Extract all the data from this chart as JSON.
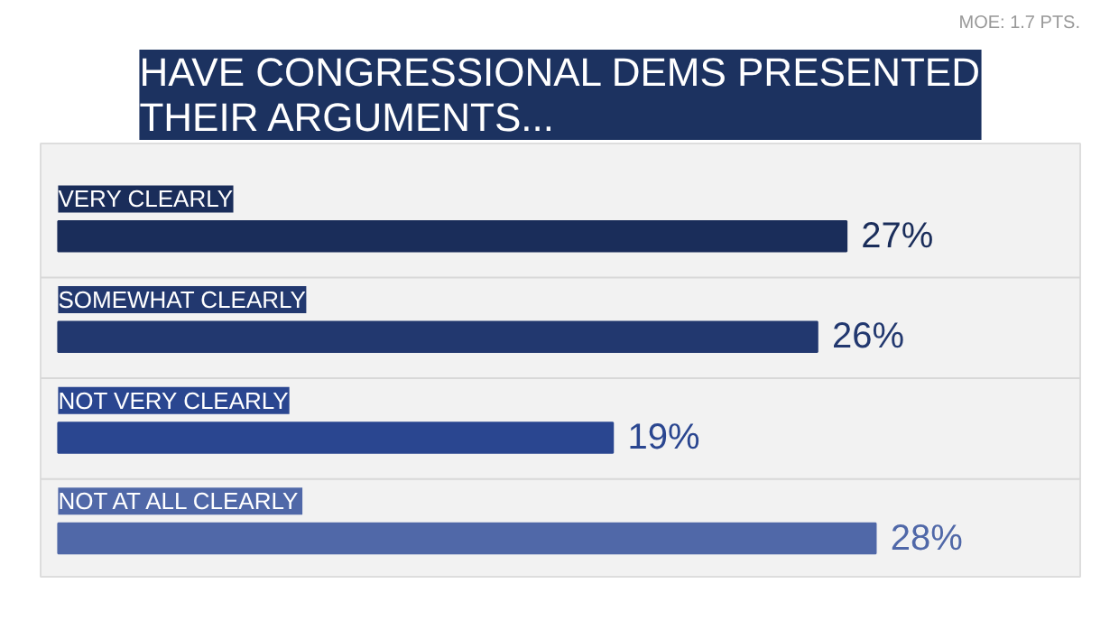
{
  "chart_data": {
    "type": "bar",
    "orientation": "horizontal",
    "title": "HAVE CONGRESSIONAL DEMS PRESENTED THEIR ARGUMENTS...",
    "annotations": [
      "MOE: 1.7 PTS."
    ],
    "categories": [
      "VERY CLEARLY",
      "SOMEWHAT CLEARLY",
      "NOT VERY CLEARLY",
      "NOT AT ALL CLEARLY"
    ],
    "values": [
      27,
      26,
      19,
      28
    ],
    "colors": [
      "#1a2d5a",
      "#22386f",
      "#2a4690",
      "#5068a8"
    ],
    "value_labels": [
      "27%",
      "26%",
      "19%",
      "28%"
    ],
    "grid": false
  }
}
